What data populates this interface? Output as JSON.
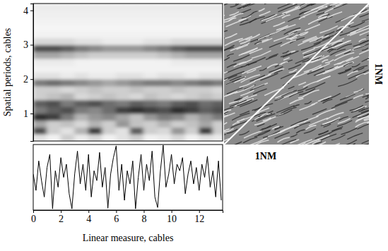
{
  "chart_data": [
    {
      "type": "heatmap",
      "ylabel": "Spatial periods, cables",
      "xlim": [
        0,
        13.7
      ],
      "ylim": [
        0.2,
        4.2
      ],
      "yticks": [
        1,
        2,
        3,
        4
      ],
      "tick_labels": "y",
      "zlim": [
        0,
        1
      ],
      "x": [
        0.5,
        1.5,
        2.5,
        3.5,
        4.5,
        5.5,
        6.5,
        7.5,
        8.5,
        9.5,
        10.5,
        11.5,
        12.5,
        13.5
      ],
      "y": [
        0.3,
        0.5,
        0.7,
        0.9,
        1.1,
        1.3,
        1.5,
        1.7,
        1.9,
        2.1,
        2.3,
        2.5,
        2.7,
        2.9,
        3.1,
        3.3,
        3.5,
        3.7,
        3.9,
        4.1
      ],
      "cells": [
        [
          0.2,
          0.1,
          0.3,
          0.15,
          0.25,
          0.1,
          0.2,
          0.3,
          0.1,
          0.15,
          0.25,
          0.1,
          0.2,
          0.15
        ],
        [
          0.75,
          0.3,
          0.2,
          0.4,
          0.8,
          0.3,
          0.2,
          0.7,
          0.3,
          0.25,
          0.5,
          0.3,
          0.8,
          0.3
        ],
        [
          0.45,
          0.3,
          0.35,
          0.25,
          0.4,
          0.3,
          0.5,
          0.35,
          0.3,
          0.4,
          0.3,
          0.35,
          0.45,
          0.3
        ],
        [
          0.85,
          0.8,
          0.6,
          0.4,
          0.5,
          0.55,
          0.45,
          0.35,
          0.5,
          0.6,
          0.55,
          0.4,
          0.5,
          0.6
        ],
        [
          0.6,
          0.7,
          0.75,
          0.6,
          0.55,
          0.65,
          0.8,
          0.85,
          0.8,
          0.75,
          0.85,
          0.8,
          0.7,
          0.75
        ],
        [
          0.7,
          0.75,
          0.6,
          0.7,
          0.75,
          0.65,
          0.6,
          0.7,
          0.65,
          0.6,
          0.7,
          0.75,
          0.65,
          0.7
        ],
        [
          0.3,
          0.35,
          0.4,
          0.25,
          0.3,
          0.35,
          0.3,
          0.25,
          0.35,
          0.3,
          0.25,
          0.3,
          0.35,
          0.3
        ],
        [
          0.3,
          0.3,
          0.25,
          0.3,
          0.35,
          0.3,
          0.3,
          0.35,
          0.3,
          0.3,
          0.35,
          0.3,
          0.3,
          0.25
        ],
        [
          0.6,
          0.65,
          0.6,
          0.55,
          0.5,
          0.45,
          0.5,
          0.55,
          0.6,
          0.6,
          0.55,
          0.6,
          0.65,
          0.6
        ],
        [
          0.2,
          0.2,
          0.15,
          0.2,
          0.15,
          0.15,
          0.2,
          0.2,
          0.15,
          0.2,
          0.2,
          0.15,
          0.2,
          0.2
        ],
        [
          0.1,
          0.1,
          0.1,
          0.1,
          0.1,
          0.1,
          0.1,
          0.1,
          0.1,
          0.1,
          0.1,
          0.1,
          0.1,
          0.1
        ],
        [
          0.15,
          0.15,
          0.15,
          0.1,
          0.1,
          0.1,
          0.1,
          0.1,
          0.1,
          0.1,
          0.15,
          0.15,
          0.15,
          0.15
        ],
        [
          0.45,
          0.45,
          0.4,
          0.35,
          0.3,
          0.3,
          0.3,
          0.3,
          0.3,
          0.35,
          0.4,
          0.45,
          0.45,
          0.45
        ],
        [
          0.75,
          0.75,
          0.7,
          0.6,
          0.55,
          0.5,
          0.5,
          0.5,
          0.55,
          0.6,
          0.7,
          0.75,
          0.75,
          0.75
        ],
        [
          0.25,
          0.25,
          0.25,
          0.2,
          0.2,
          0.15,
          0.15,
          0.15,
          0.2,
          0.2,
          0.25,
          0.25,
          0.25,
          0.25
        ],
        [
          0.1,
          0.1,
          0.1,
          0.1,
          0.1,
          0.1,
          0.1,
          0.1,
          0.1,
          0.1,
          0.1,
          0.1,
          0.1,
          0.1
        ],
        [
          0.08,
          0.08,
          0.08,
          0.08,
          0.08,
          0.08,
          0.08,
          0.08,
          0.08,
          0.08,
          0.08,
          0.08,
          0.08,
          0.08
        ],
        [
          0.1,
          0.1,
          0.1,
          0.1,
          0.1,
          0.1,
          0.1,
          0.1,
          0.1,
          0.1,
          0.1,
          0.1,
          0.1,
          0.1
        ],
        [
          0.12,
          0.12,
          0.12,
          0.12,
          0.12,
          0.12,
          0.12,
          0.12,
          0.12,
          0.12,
          0.12,
          0.12,
          0.12,
          0.12
        ],
        [
          0.15,
          0.15,
          0.15,
          0.15,
          0.15,
          0.15,
          0.15,
          0.15,
          0.15,
          0.15,
          0.15,
          0.15,
          0.15,
          0.15
        ]
      ]
    },
    {
      "type": "line",
      "xlabel": "Linear measure, cables",
      "xlim": [
        0,
        13.7
      ],
      "ylim": [
        0,
        1
      ],
      "xticks": [
        0,
        2,
        4,
        6,
        8,
        10,
        12
      ],
      "tick_labels": "x",
      "color": "#000000",
      "x": [
        0,
        0.2,
        0.4,
        0.6,
        0.8,
        1,
        1.2,
        1.4,
        1.6,
        1.8,
        2,
        2.2,
        2.4,
        2.6,
        2.8,
        3,
        3.2,
        3.4,
        3.6,
        3.8,
        4,
        4.2,
        4.4,
        4.6,
        4.8,
        5,
        5.2,
        5.4,
        5.6,
        5.8,
        6,
        6.2,
        6.4,
        6.6,
        6.8,
        7,
        7.2,
        7.4,
        7.6,
        7.8,
        8,
        8.2,
        8.4,
        8.6,
        8.8,
        9,
        9.2,
        9.4,
        9.6,
        9.8,
        10,
        10.2,
        10.4,
        10.6,
        10.8,
        11,
        11.2,
        11.4,
        11.6,
        11.8,
        12,
        12.2,
        12.4,
        12.6,
        12.8,
        13,
        13.2,
        13.4,
        13.6
      ],
      "values": [
        0.55,
        0.3,
        0.75,
        0.45,
        0.2,
        0.65,
        0.85,
        0.02,
        0.6,
        0.35,
        0.8,
        0.5,
        0.7,
        0.25,
        0.02,
        0.55,
        0.9,
        0.4,
        0.7,
        0.3,
        0.85,
        0.2,
        0.6,
        0.45,
        0.88,
        0.35,
        0.65,
        0.03,
        0.55,
        0.8,
        0.98,
        0.3,
        0.7,
        0.15,
        0.6,
        0.4,
        0.75,
        0.02,
        0.5,
        0.85,
        0.3,
        0.7,
        0.45,
        0.9,
        0.2,
        0.04,
        0.6,
        0.99,
        0.35,
        0.55,
        0.85,
        0.4,
        0.7,
        0.6,
        0.8,
        0.25,
        0.55,
        0.75,
        0.4,
        0.65,
        0.3,
        0.7,
        0.5,
        0.82,
        0.35,
        0.6,
        0.2,
        0.75,
        0.15
      ]
    },
    {
      "type": "image",
      "xlabel": "1NM",
      "ylabel": "1NM"
    }
  ]
}
